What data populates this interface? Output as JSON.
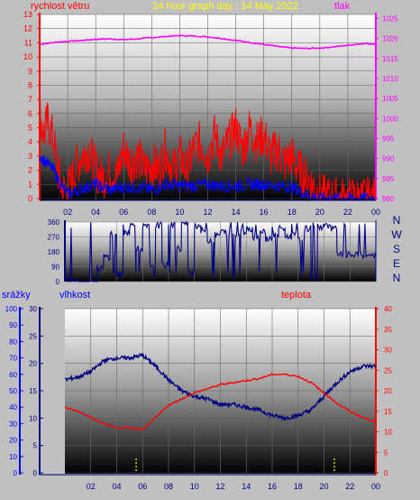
{
  "header": {
    "title": "24 hour graph day : 14 May 2022"
  },
  "colors": {
    "frame": "#c0c0c0",
    "wind": "#ff0000",
    "gust": "#ff0000",
    "wind_avg": "#0000ff",
    "pressure": "#ff00ff",
    "direction": "#000080",
    "humidity": "#000080",
    "temperature": "#ff0000",
    "rain_axis": "#0000ff",
    "rain_marks": "#ffff00",
    "title": "#ffff00",
    "compass": "#000080"
  },
  "chart_data": [
    {
      "type": "line",
      "id": "wind-pressure",
      "title": "24 hour graph day : 14 May 2022",
      "left_axis_label": "rychlost větru",
      "right_axis_label": "tlak",
      "x_ticks": [
        "02",
        "04",
        "06",
        "08",
        "10",
        "12",
        "14",
        "16",
        "18",
        "20",
        "22",
        "00"
      ],
      "y_left_ticks": [
        "0",
        "1",
        "2",
        "3",
        "4",
        "5",
        "6",
        "7",
        "8",
        "9",
        "10",
        "11",
        "12",
        "13"
      ],
      "y_right_ticks": [
        "980",
        "985",
        "990",
        "995",
        "1000",
        "1005",
        "1010",
        "1015",
        "1020",
        "1025"
      ],
      "ylim_left": [
        0,
        13
      ],
      "ylim_right": [
        980,
        1026
      ],
      "xlim": [
        0,
        24
      ],
      "series": [
        {
          "axis": "right",
          "x": [
            0,
            1,
            2,
            3,
            4,
            5,
            6,
            7,
            8,
            9,
            10,
            11,
            12,
            13,
            14,
            15,
            16,
            17,
            18,
            19,
            20,
            21,
            22,
            23,
            24
          ],
          "values": [
            1018.5,
            1019,
            1019.3,
            1019.5,
            1019.8,
            1019.9,
            1019.7,
            1019.9,
            1020.2,
            1020.5,
            1020.7,
            1020.6,
            1020.4,
            1020.0,
            1019.5,
            1019.0,
            1018.5,
            1018.0,
            1017.6,
            1017.5,
            1017.6,
            1017.9,
            1018.3,
            1018.7,
            1018.6
          ]
        },
        {
          "axis": "left",
          "x": [
            0,
            0.3,
            0.6,
            1,
            1.3,
            1.6,
            2,
            2.5,
            3,
            3.5,
            4,
            4.5,
            5,
            5.5,
            6,
            6.5,
            7,
            7.5,
            8,
            8.5,
            9,
            9.5,
            10,
            10.5,
            11,
            11.5,
            12,
            12.5,
            13,
            13.5,
            14,
            14.5,
            15,
            15.5,
            16,
            16.5,
            17,
            17.5,
            18,
            18.5,
            19,
            19.5,
            20,
            21,
            22,
            23,
            24
          ],
          "values": [
            6,
            4.5,
            5.5,
            4,
            2,
            0.5,
            0.5,
            2,
            3,
            3.5,
            2,
            1.5,
            2,
            1.5,
            3.5,
            2.5,
            3,
            2,
            2.5,
            2,
            3.5,
            2,
            3,
            2,
            3.5,
            4,
            3,
            4.5,
            3,
            4,
            5,
            3.5,
            5,
            4,
            4.5,
            3,
            3.5,
            2.5,
            3,
            2,
            1.5,
            1,
            0.2,
            0,
            0,
            0,
            0
          ]
        },
        {
          "axis": "left",
          "x": [
            0,
            0.5,
            1,
            1.5,
            2,
            3,
            4,
            5,
            6,
            7,
            8,
            9,
            10,
            11,
            12,
            13,
            14,
            15,
            16,
            17,
            18,
            19,
            20,
            21,
            22,
            23,
            24
          ],
          "values": [
            3,
            2.5,
            2,
            1,
            0.3,
            0.7,
            1,
            0.6,
            0.8,
            0.8,
            0.6,
            1,
            0.9,
            0.9,
            1,
            0.9,
            0.9,
            1,
            1,
            0.9,
            0.8,
            0.3,
            0,
            0,
            0,
            0,
            0
          ]
        }
      ]
    },
    {
      "type": "line",
      "id": "wind-direction",
      "y_ticks": [
        "0",
        "90",
        "180",
        "270",
        "360"
      ],
      "ylim": [
        0,
        360
      ],
      "xlim": [
        0,
        24
      ],
      "compass_labels": [
        "N",
        "W",
        "S",
        "E",
        "N"
      ],
      "series": [
        {
          "x": [
            0,
            1,
            1.5,
            2,
            2.5,
            3,
            3.5,
            4,
            4.5,
            5,
            5.5,
            6,
            6.5,
            7,
            7.5,
            8,
            8.5,
            9,
            9.5,
            10,
            10.5,
            11,
            11.5,
            12,
            12.5,
            13,
            13.5,
            14,
            14.5,
            15,
            15.5,
            16,
            16.5,
            17,
            17.5,
            18,
            18.5,
            19,
            19.5,
            20,
            20.5,
            21,
            22,
            23,
            24
          ],
          "values": [
            0,
            0,
            0,
            0,
            80,
            150,
            290,
            40,
            300,
            340,
            200,
            330,
            80,
            340,
            100,
            340,
            200,
            350,
            60,
            340,
            310,
            250,
            280,
            300,
            260,
            290,
            300,
            320,
            270,
            300,
            260,
            280,
            320,
            270,
            300,
            250,
            320,
            30,
            330,
            340,
            320,
            160,
            160,
            160,
            160
          ]
        }
      ]
    },
    {
      "type": "line",
      "id": "humidity-temperature",
      "left_axis_label_rain": "srážky",
      "left_axis_label_humidity": "vlhkost",
      "right_axis_label": "teplota",
      "x_ticks": [
        "02",
        "04",
        "06",
        "08",
        "10",
        "12",
        "14",
        "16",
        "18",
        "20",
        "22",
        "00"
      ],
      "rain_ticks": [
        "0",
        "10",
        "20",
        "30",
        "40",
        "50",
        "60",
        "70",
        "80",
        "90",
        "100"
      ],
      "humidity_ticks": [
        "0",
        "5",
        "10",
        "15",
        "20",
        "25",
        "30"
      ],
      "temperature_ticks": [
        "0",
        "5",
        "10",
        "15",
        "20",
        "25",
        "30",
        "35",
        "40"
      ],
      "xlim": [
        0,
        24
      ],
      "ylim_humidity": [
        0,
        30
      ],
      "ylim_temperature": [
        0,
        40
      ],
      "ylim_rain": [
        0,
        100
      ],
      "series": [
        {
          "axis": "humidity",
          "x": [
            0,
            1,
            2,
            3,
            4,
            5,
            6,
            7,
            8,
            9,
            10,
            11,
            12,
            13,
            14,
            15,
            16,
            17,
            18,
            19,
            20,
            21,
            22,
            23,
            24
          ],
          "values": [
            17,
            17.5,
            18.5,
            20.5,
            21,
            21,
            21.5,
            19.5,
            17,
            15,
            14,
            13.5,
            12.5,
            12.5,
            12,
            11.5,
            10.5,
            10,
            10.5,
            11.5,
            14,
            16.5,
            18.5,
            19.5,
            19.5
          ]
        },
        {
          "axis": "temperature",
          "x": [
            0,
            1,
            2,
            3,
            4,
            5,
            6,
            7,
            8,
            9,
            10,
            11,
            12,
            13,
            14,
            15,
            16,
            17,
            18,
            19,
            20,
            21,
            22,
            23,
            24
          ],
          "values": [
            16,
            15,
            13.5,
            12,
            11,
            11,
            10.5,
            13.5,
            16.5,
            18,
            19.5,
            20.5,
            21.5,
            22,
            22.5,
            23,
            24,
            24,
            23.5,
            22,
            19.5,
            17,
            15,
            13.5,
            12.5
          ]
        }
      ],
      "rain_marks_x": [
        5.5,
        20.8
      ]
    }
  ]
}
